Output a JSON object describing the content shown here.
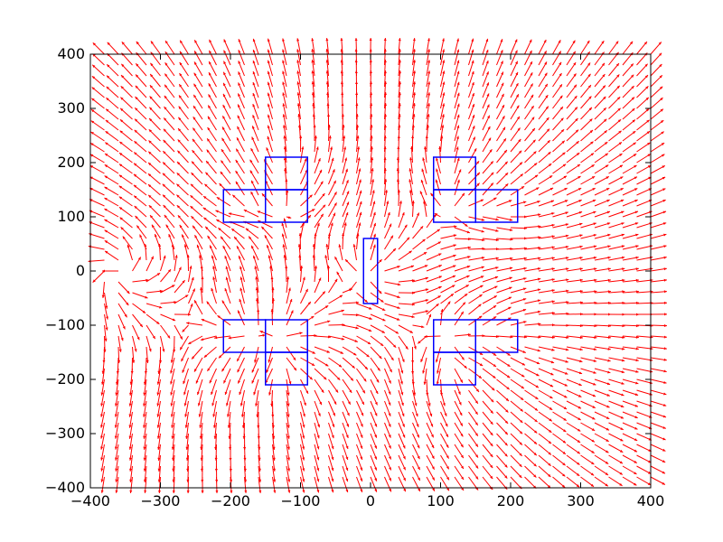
{
  "chart_data": {
    "type": "quiver",
    "title": "",
    "xlabel": "",
    "ylabel": "",
    "xlim": [
      -400,
      400
    ],
    "ylim": [
      -400,
      400
    ],
    "xticks": [
      -400,
      -300,
      -200,
      -100,
      0,
      100,
      200,
      300,
      400
    ],
    "yticks": [
      -400,
      -300,
      -200,
      -100,
      0,
      100,
      200,
      300,
      400
    ],
    "xtick_labels": [
      "−400",
      "−300",
      "−200",
      "−100",
      "0",
      "100",
      "200",
      "300",
      "400"
    ],
    "ytick_labels": [
      "−400",
      "−300",
      "−200",
      "−100",
      "0",
      "100",
      "200",
      "300",
      "400"
    ],
    "grid": false,
    "legend": "none",
    "vector_field": {
      "grid_x": {
        "start": -380,
        "stop": 400,
        "step": 20
      },
      "grid_y": {
        "start": -380,
        "stop": 400,
        "step": 20
      },
      "direction": "flow from source toward +x, bending around obstacles",
      "source_point": [
        -360,
        0
      ],
      "color": "#ff0000"
    },
    "obstacles": {
      "color": "#0000ff",
      "rects": [
        {
          "x0": -150,
          "x1": -90,
          "y0": 150,
          "y1": 210
        },
        {
          "x0": -210,
          "x1": -150,
          "y0": 90,
          "y1": 150
        },
        {
          "x0": -150,
          "x1": -90,
          "y0": 90,
          "y1": 150
        },
        {
          "x0": 90,
          "x1": 150,
          "y0": 150,
          "y1": 210
        },
        {
          "x0": 90,
          "x1": 150,
          "y0": 90,
          "y1": 150
        },
        {
          "x0": 150,
          "x1": 210,
          "y0": 90,
          "y1": 150
        },
        {
          "x0": -10,
          "x1": 10,
          "y0": -60,
          "y1": 60
        },
        {
          "x0": -210,
          "x1": -150,
          "y0": -150,
          "y1": -90
        },
        {
          "x0": -150,
          "x1": -90,
          "y0": -150,
          "y1": -90
        },
        {
          "x0": -150,
          "x1": -90,
          "y0": -210,
          "y1": -150
        },
        {
          "x0": 90,
          "x1": 150,
          "y0": -150,
          "y1": -90
        },
        {
          "x0": 150,
          "x1": 210,
          "y0": -150,
          "y1": -90
        },
        {
          "x0": 90,
          "x1": 150,
          "y0": -210,
          "y1": -150
        }
      ]
    }
  }
}
